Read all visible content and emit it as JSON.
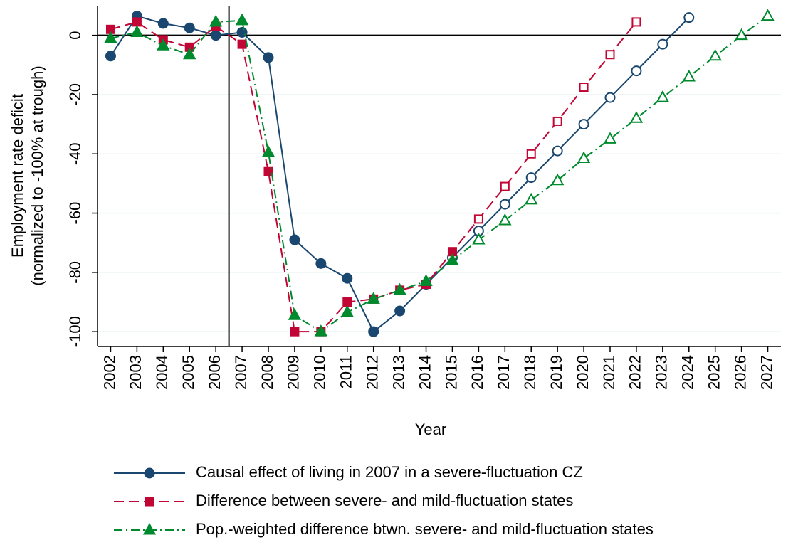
{
  "chart_data": {
    "type": "line",
    "xlabel": "Year",
    "ylabel": [
      "Employment rate deficit",
      "(normalized to -100% at trough)"
    ],
    "x": [
      2002,
      2003,
      2004,
      2005,
      2006,
      2007,
      2008,
      2009,
      2010,
      2011,
      2012,
      2013,
      2014,
      2015,
      2016,
      2017,
      2018,
      2019,
      2020,
      2021,
      2022,
      2023,
      2024,
      2025,
      2026,
      2027
    ],
    "xlim": [
      2001.5,
      2027.5
    ],
    "xticks": [
      2002,
      2003,
      2004,
      2005,
      2006,
      2007,
      2008,
      2009,
      2010,
      2011,
      2012,
      2013,
      2014,
      2015,
      2016,
      2017,
      2018,
      2019,
      2020,
      2021,
      2022,
      2023,
      2024,
      2025,
      2026,
      2027
    ],
    "ylim": [
      -105,
      10
    ],
    "yticks": [
      0,
      -20,
      -40,
      -60,
      -80,
      -100
    ],
    "grid": true,
    "vline": 2006.5,
    "hline": 0,
    "series": [
      {
        "name": "Causal effect of living in 2007 in a severe-fluctuation CZ",
        "color": "#1a476f",
        "line_style": "solid",
        "marker": "circle",
        "hollow_from": 2015,
        "values": [
          -7,
          6.5,
          4,
          2.5,
          0,
          1,
          -7.5,
          -69,
          -77,
          -82,
          -100,
          -93,
          -84,
          -75,
          -66,
          -57,
          -48,
          -39,
          -30,
          -21,
          -12,
          -3,
          6,
          null,
          null,
          null
        ]
      },
      {
        "name": "Difference between severe- and mild-fluctuation states",
        "color": "#c10534",
        "line_style": "dashed",
        "marker": "square",
        "hollow_from": 2016,
        "values": [
          2,
          4.5,
          -1.5,
          -4,
          3,
          -3,
          -46,
          -100,
          -100,
          -90,
          -89,
          -86,
          -84,
          -73,
          -62,
          -51,
          -40,
          -29,
          -17.5,
          -6.5,
          4.5,
          null,
          null,
          null,
          null,
          null
        ]
      },
      {
        "name": "Pop.-weighted difference btwn. severe- and mild-fluctuation states",
        "color": "#008a2e",
        "line_style": "dashdot",
        "marker": "triangle",
        "hollow_from": 2016,
        "values": [
          -1,
          1,
          -3.5,
          -6.5,
          4.5,
          5,
          -39.5,
          -94.5,
          -100,
          -93.5,
          -89,
          -86,
          -83,
          -76,
          -69,
          -62.5,
          -55.5,
          -49,
          -41.5,
          -35,
          -28,
          -21,
          -14,
          -7,
          0,
          6.5
        ]
      }
    ]
  }
}
